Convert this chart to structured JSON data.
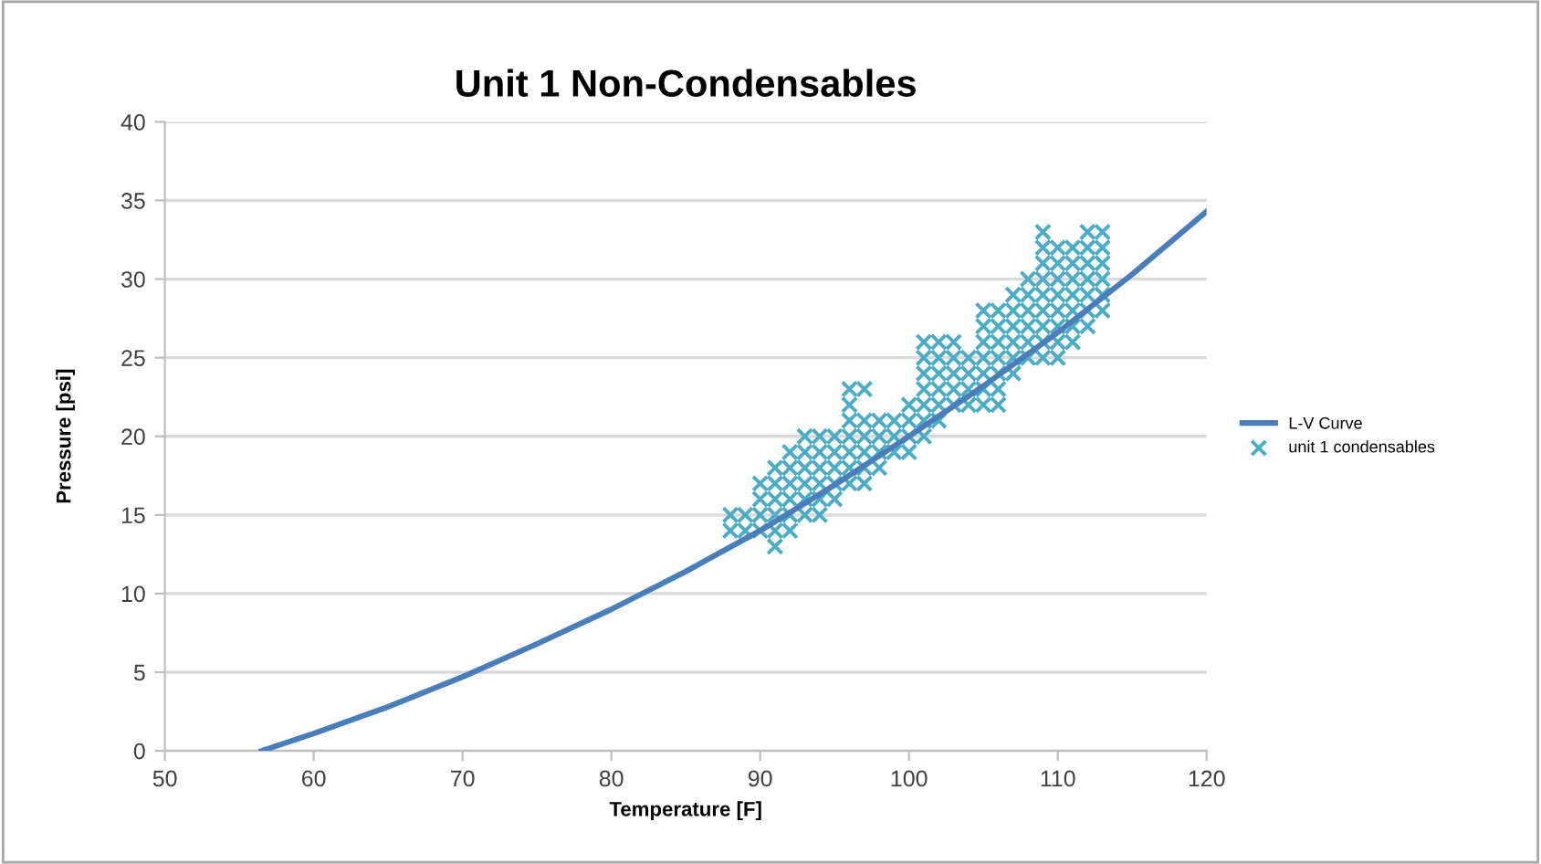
{
  "chart_data": {
    "type": "line",
    "title": "Unit 1 Non-Condensables",
    "xlabel": "Temperature [F]",
    "ylabel": "Pressure [psi]",
    "xlim": [
      50,
      120
    ],
    "xticks": [
      50,
      60,
      70,
      80,
      90,
      100,
      110,
      120
    ],
    "ylim": [
      0,
      40
    ],
    "yticks": [
      0,
      5,
      10,
      15,
      20,
      25,
      30,
      35,
      40
    ],
    "grid": "y",
    "legend": "right",
    "series": [
      {
        "name": "L-V Curve",
        "color": "#4a7ebb",
        "marker": "none",
        "line_style": "solid",
        "x": [
          56.5,
          60,
          65,
          70,
          75,
          80,
          85,
          90,
          95,
          100,
          105,
          110,
          115,
          120
        ],
        "values": [
          0,
          1.1,
          2.8,
          4.7,
          6.8,
          9,
          11.4,
          14,
          16.9,
          20,
          23.2,
          26.6,
          30.3,
          34.3
        ]
      },
      {
        "name": "unit 1 condensables",
        "type": "scatter",
        "color": "#4bacc6",
        "marker": "cross",
        "x": [
          88,
          88,
          89,
          89,
          90,
          90,
          90,
          90,
          91,
          91,
          91,
          91,
          91,
          91,
          92,
          92,
          92,
          92,
          92,
          92,
          93,
          93,
          93,
          93,
          93,
          93,
          94,
          94,
          94,
          94,
          94,
          94,
          95,
          95,
          95,
          95,
          95,
          96,
          96,
          96,
          96,
          96,
          96,
          96,
          97,
          97,
          97,
          97,
          97,
          97,
          98,
          98,
          98,
          98,
          99,
          99,
          99,
          100,
          100,
          100,
          100,
          101,
          101,
          101,
          101,
          101,
          101,
          101,
          102,
          102,
          102,
          102,
          102,
          102,
          103,
          103,
          103,
          103,
          103,
          104,
          104,
          104,
          104,
          105,
          105,
          105,
          105,
          105,
          105,
          105,
          106,
          106,
          106,
          106,
          106,
          106,
          106,
          107,
          107,
          107,
          107,
          107,
          107,
          108,
          108,
          108,
          108,
          108,
          108,
          109,
          109,
          109,
          109,
          109,
          109,
          109,
          109,
          109,
          110,
          110,
          110,
          110,
          110,
          110,
          110,
          110,
          111,
          111,
          111,
          111,
          111,
          111,
          111,
          112,
          112,
          112,
          112,
          112,
          112,
          112,
          113,
          113,
          113,
          113,
          113,
          113
        ],
        "values": [
          14,
          15,
          14,
          15,
          14,
          15,
          16,
          17,
          13,
          14,
          15,
          16,
          17,
          18,
          14,
          15,
          16,
          17,
          18,
          19,
          15,
          16,
          17,
          18,
          19,
          20,
          15,
          16,
          17,
          18,
          19,
          20,
          16,
          17,
          18,
          19,
          20,
          17,
          18,
          19,
          20,
          21,
          22,
          23,
          17,
          18,
          19,
          20,
          21,
          23,
          18,
          19,
          20,
          21,
          19,
          20,
          21,
          19,
          20,
          21,
          22,
          20,
          21,
          22,
          23,
          24,
          25,
          26,
          21,
          22,
          23,
          24,
          25,
          26,
          22,
          23,
          24,
          25,
          26,
          22,
          23,
          24,
          25,
          22,
          23,
          24,
          25,
          26,
          27,
          28,
          22,
          23,
          24,
          25,
          26,
          27,
          28,
          24,
          25,
          26,
          27,
          28,
          29,
          25,
          26,
          27,
          28,
          29,
          30,
          25,
          26,
          27,
          28,
          29,
          30,
          31,
          32,
          33,
          25,
          26,
          27,
          28,
          29,
          30,
          31,
          32,
          26,
          27,
          28,
          29,
          30,
          31,
          32,
          27,
          28,
          29,
          30,
          31,
          32,
          33,
          28,
          29,
          30,
          31,
          32,
          33
        ]
      }
    ]
  }
}
